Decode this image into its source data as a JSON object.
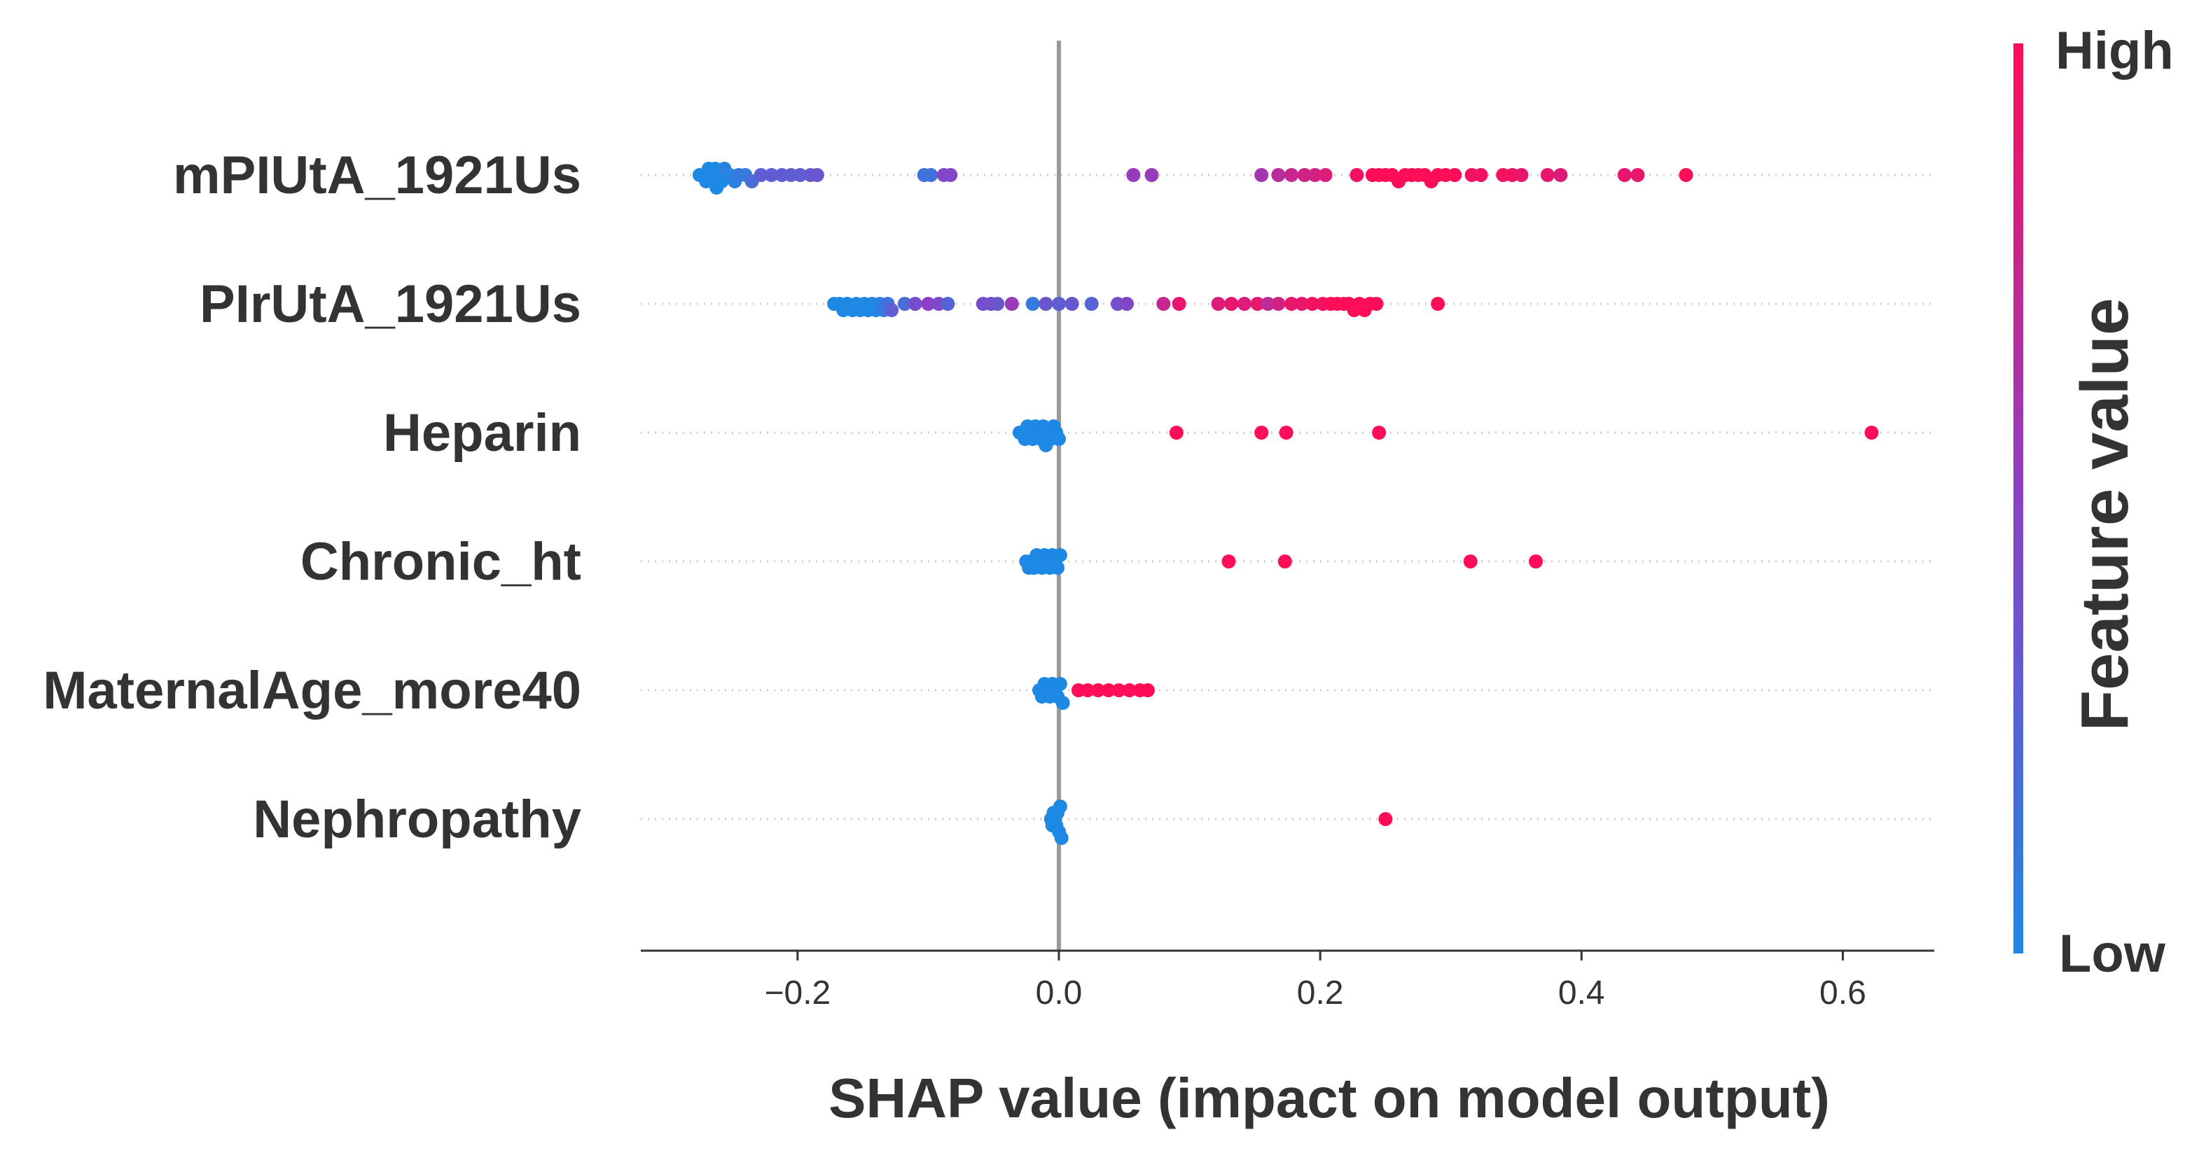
{
  "chart_data": {
    "type": "scatter",
    "subtype": "shap-beeswarm",
    "xlabel": "SHAP value (impact on model output)",
    "xlim": [
      -0.32,
      0.67
    ],
    "x_ticks": [
      -0.2,
      0.0,
      0.2,
      0.4,
      0.6
    ],
    "x_tick_labels": [
      "−0.2",
      "0.0",
      "0.2",
      "0.4",
      "0.6"
    ],
    "zero_line": 0.0,
    "colorbar": {
      "title": "Feature value",
      "high_label": "High",
      "low_label": "Low",
      "low_color": "#1e88e5",
      "high_color": "#ff0d57"
    },
    "features": [
      {
        "name": "mPIUtA_1921Us",
        "points": [
          {
            "x": -0.275,
            "v": 0.0
          },
          {
            "x": -0.272,
            "v": 0.0
          },
          {
            "x": -0.27,
            "v": 0.0
          },
          {
            "x": -0.268,
            "v": 0.0
          },
          {
            "x": -0.266,
            "v": 0.0
          },
          {
            "x": -0.265,
            "v": 0.0
          },
          {
            "x": -0.263,
            "v": 0.0
          },
          {
            "x": -0.262,
            "v": 0.0
          },
          {
            "x": -0.26,
            "v": 0.0
          },
          {
            "x": -0.258,
            "v": 0.0
          },
          {
            "x": -0.256,
            "v": 0.05
          },
          {
            "x": -0.252,
            "v": 0.05
          },
          {
            "x": -0.248,
            "v": 0.05
          },
          {
            "x": -0.245,
            "v": 0.1
          },
          {
            "x": -0.24,
            "v": 0.1
          },
          {
            "x": -0.235,
            "v": 0.2
          },
          {
            "x": -0.228,
            "v": 0.3
          },
          {
            "x": -0.22,
            "v": 0.3
          },
          {
            "x": -0.212,
            "v": 0.3
          },
          {
            "x": -0.205,
            "v": 0.3
          },
          {
            "x": -0.198,
            "v": 0.3
          },
          {
            "x": -0.19,
            "v": 0.35
          },
          {
            "x": -0.185,
            "v": 0.35
          },
          {
            "x": -0.103,
            "v": 0.15
          },
          {
            "x": -0.098,
            "v": 0.15
          },
          {
            "x": -0.088,
            "v": 0.45
          },
          {
            "x": -0.083,
            "v": 0.45
          },
          {
            "x": 0.057,
            "v": 0.55
          },
          {
            "x": 0.071,
            "v": 0.55
          },
          {
            "x": 0.155,
            "v": 0.6
          },
          {
            "x": 0.168,
            "v": 0.7
          },
          {
            "x": 0.178,
            "v": 0.75
          },
          {
            "x": 0.188,
            "v": 0.8
          },
          {
            "x": 0.196,
            "v": 0.8
          },
          {
            "x": 0.204,
            "v": 0.85
          },
          {
            "x": 0.228,
            "v": 0.95
          },
          {
            "x": 0.24,
            "v": 1.0
          },
          {
            "x": 0.245,
            "v": 1.0
          },
          {
            "x": 0.25,
            "v": 1.0
          },
          {
            "x": 0.255,
            "v": 1.0
          },
          {
            "x": 0.26,
            "v": 1.0
          },
          {
            "x": 0.265,
            "v": 1.0
          },
          {
            "x": 0.27,
            "v": 1.0
          },
          {
            "x": 0.275,
            "v": 1.0
          },
          {
            "x": 0.28,
            "v": 1.0
          },
          {
            "x": 0.285,
            "v": 1.0
          },
          {
            "x": 0.29,
            "v": 1.0
          },
          {
            "x": 0.296,
            "v": 1.0
          },
          {
            "x": 0.303,
            "v": 1.0
          },
          {
            "x": 0.316,
            "v": 0.95
          },
          {
            "x": 0.323,
            "v": 0.95
          },
          {
            "x": 0.34,
            "v": 0.95
          },
          {
            "x": 0.347,
            "v": 0.95
          },
          {
            "x": 0.354,
            "v": 0.9
          },
          {
            "x": 0.374,
            "v": 0.9
          },
          {
            "x": 0.384,
            "v": 0.85
          },
          {
            "x": 0.433,
            "v": 0.9
          },
          {
            "x": 0.443,
            "v": 0.9
          },
          {
            "x": 0.48,
            "v": 1.0
          }
        ]
      },
      {
        "name": "PIrUtA_1921Us",
        "points": [
          {
            "x": -0.172,
            "v": 0.0
          },
          {
            "x": -0.168,
            "v": 0.0
          },
          {
            "x": -0.165,
            "v": 0.0
          },
          {
            "x": -0.162,
            "v": 0.0
          },
          {
            "x": -0.158,
            "v": 0.0
          },
          {
            "x": -0.155,
            "v": 0.0
          },
          {
            "x": -0.152,
            "v": 0.0
          },
          {
            "x": -0.149,
            "v": 0.0
          },
          {
            "x": -0.146,
            "v": 0.0
          },
          {
            "x": -0.143,
            "v": 0.0
          },
          {
            "x": -0.14,
            "v": 0.0
          },
          {
            "x": -0.137,
            "v": 0.05
          },
          {
            "x": -0.134,
            "v": 0.1
          },
          {
            "x": -0.131,
            "v": 0.15
          },
          {
            "x": -0.128,
            "v": 0.3
          },
          {
            "x": -0.118,
            "v": 0.2
          },
          {
            "x": -0.11,
            "v": 0.4
          },
          {
            "x": -0.1,
            "v": 0.5
          },
          {
            "x": -0.092,
            "v": 0.45
          },
          {
            "x": -0.085,
            "v": 0.25
          },
          {
            "x": -0.058,
            "v": 0.4
          },
          {
            "x": -0.052,
            "v": 0.4
          },
          {
            "x": -0.047,
            "v": 0.35
          },
          {
            "x": -0.036,
            "v": 0.55
          },
          {
            "x": -0.02,
            "v": 0.1
          },
          {
            "x": -0.01,
            "v": 0.35
          },
          {
            "x": 0.0,
            "v": 0.3
          },
          {
            "x": 0.01,
            "v": 0.35
          },
          {
            "x": 0.025,
            "v": 0.25
          },
          {
            "x": 0.045,
            "v": 0.4
          },
          {
            "x": 0.052,
            "v": 0.45
          },
          {
            "x": 0.08,
            "v": 0.75
          },
          {
            "x": 0.092,
            "v": 0.9
          },
          {
            "x": 0.122,
            "v": 0.85
          },
          {
            "x": 0.132,
            "v": 0.9
          },
          {
            "x": 0.142,
            "v": 0.85
          },
          {
            "x": 0.152,
            "v": 0.9
          },
          {
            "x": 0.16,
            "v": 0.7
          },
          {
            "x": 0.168,
            "v": 0.8
          },
          {
            "x": 0.178,
            "v": 0.9
          },
          {
            "x": 0.186,
            "v": 0.9
          },
          {
            "x": 0.194,
            "v": 0.95
          },
          {
            "x": 0.202,
            "v": 0.95
          },
          {
            "x": 0.208,
            "v": 1.0
          },
          {
            "x": 0.213,
            "v": 1.0
          },
          {
            "x": 0.218,
            "v": 1.0
          },
          {
            "x": 0.222,
            "v": 1.0
          },
          {
            "x": 0.226,
            "v": 1.0
          },
          {
            "x": 0.23,
            "v": 1.0
          },
          {
            "x": 0.234,
            "v": 1.0
          },
          {
            "x": 0.238,
            "v": 1.0
          },
          {
            "x": 0.243,
            "v": 1.0
          },
          {
            "x": 0.29,
            "v": 1.0
          }
        ]
      },
      {
        "name": "Heparin",
        "points": [
          {
            "x": -0.03,
            "v": 0.0
          },
          {
            "x": -0.028,
            "v": 0.0
          },
          {
            "x": -0.026,
            "v": 0.0
          },
          {
            "x": -0.024,
            "v": 0.0
          },
          {
            "x": -0.022,
            "v": 0.0
          },
          {
            "x": -0.02,
            "v": 0.0
          },
          {
            "x": -0.018,
            "v": 0.0
          },
          {
            "x": -0.016,
            "v": 0.0
          },
          {
            "x": -0.014,
            "v": 0.0
          },
          {
            "x": -0.012,
            "v": 0.0
          },
          {
            "x": -0.01,
            "v": 0.0
          },
          {
            "x": -0.008,
            "v": 0.0
          },
          {
            "x": -0.006,
            "v": 0.0
          },
          {
            "x": -0.004,
            "v": 0.0
          },
          {
            "x": -0.002,
            "v": 0.0
          },
          {
            "x": 0.0,
            "v": 0.0
          },
          {
            "x": 0.09,
            "v": 1.0
          },
          {
            "x": 0.155,
            "v": 1.0
          },
          {
            "x": 0.174,
            "v": 1.0
          },
          {
            "x": 0.245,
            "v": 1.0
          },
          {
            "x": 0.622,
            "v": 1.0
          }
        ]
      },
      {
        "name": "Chronic_ht",
        "points": [
          {
            "x": -0.025,
            "v": 0.0
          },
          {
            "x": -0.023,
            "v": 0.0
          },
          {
            "x": -0.021,
            "v": 0.0
          },
          {
            "x": -0.019,
            "v": 0.0
          },
          {
            "x": -0.017,
            "v": 0.0
          },
          {
            "x": -0.015,
            "v": 0.0
          },
          {
            "x": -0.013,
            "v": 0.0
          },
          {
            "x": -0.011,
            "v": 0.0
          },
          {
            "x": -0.009,
            "v": 0.0
          },
          {
            "x": -0.007,
            "v": 0.0
          },
          {
            "x": -0.005,
            "v": 0.0
          },
          {
            "x": -0.003,
            "v": 0.0
          },
          {
            "x": -0.001,
            "v": 0.0
          },
          {
            "x": 0.001,
            "v": 0.0
          },
          {
            "x": 0.13,
            "v": 1.0
          },
          {
            "x": 0.173,
            "v": 1.0
          },
          {
            "x": 0.315,
            "v": 1.0
          },
          {
            "x": 0.365,
            "v": 1.0
          }
        ]
      },
      {
        "name": "MaternalAge_more40",
        "points": [
          {
            "x": -0.015,
            "v": 0.0
          },
          {
            "x": -0.013,
            "v": 0.0
          },
          {
            "x": -0.011,
            "v": 0.0
          },
          {
            "x": -0.009,
            "v": 0.0
          },
          {
            "x": -0.007,
            "v": 0.0
          },
          {
            "x": -0.005,
            "v": 0.0
          },
          {
            "x": -0.003,
            "v": 0.0
          },
          {
            "x": -0.001,
            "v": 0.0
          },
          {
            "x": 0.001,
            "v": 0.0
          },
          {
            "x": 0.003,
            "v": 0.0
          },
          {
            "x": 0.015,
            "v": 1.0
          },
          {
            "x": 0.022,
            "v": 1.0
          },
          {
            "x": 0.03,
            "v": 1.0
          },
          {
            "x": 0.038,
            "v": 1.0
          },
          {
            "x": 0.046,
            "v": 1.0
          },
          {
            "x": 0.054,
            "v": 1.0
          },
          {
            "x": 0.062,
            "v": 1.0
          },
          {
            "x": 0.068,
            "v": 1.0
          }
        ]
      },
      {
        "name": "Nephropathy",
        "points": [
          {
            "x": -0.006,
            "v": 0.0
          },
          {
            "x": -0.005,
            "v": 0.0
          },
          {
            "x": -0.004,
            "v": 0.0
          },
          {
            "x": -0.003,
            "v": 0.0
          },
          {
            "x": -0.002,
            "v": 0.0
          },
          {
            "x": -0.001,
            "v": 0.0
          },
          {
            "x": 0.0,
            "v": 0.0
          },
          {
            "x": 0.001,
            "v": 0.0
          },
          {
            "x": 0.002,
            "v": 0.0
          },
          {
            "x": 0.25,
            "v": 1.0
          }
        ]
      }
    ]
  }
}
